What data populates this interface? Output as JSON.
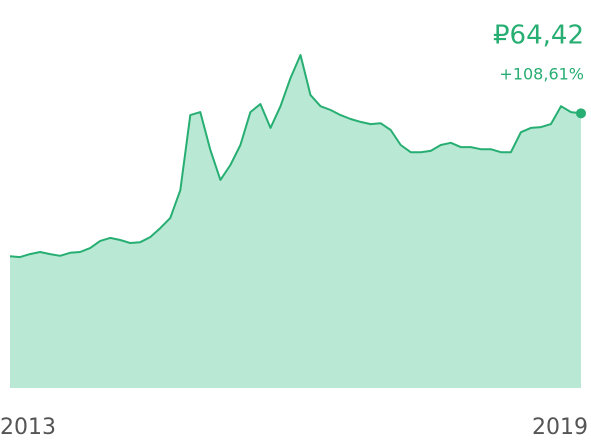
{
  "chart_data": {
    "type": "area",
    "price": "₽64,42",
    "change": "+108,61%",
    "categories": [
      "2013",
      null,
      null,
      null,
      null,
      null,
      null,
      null,
      null,
      null,
      null,
      null,
      null,
      null,
      null,
      null,
      null,
      null,
      null,
      null,
      null,
      null,
      null,
      null,
      null,
      null,
      null,
      null,
      null,
      null,
      null,
      null,
      null,
      null,
      null,
      null,
      null,
      null,
      null,
      null,
      null,
      null,
      null,
      null,
      null,
      null,
      null,
      null,
      null,
      null,
      null,
      null,
      null,
      null,
      null,
      null,
      null,
      "2019"
    ],
    "values": [
      30.88,
      30.7,
      31.4,
      31.9,
      31.4,
      31.0,
      31.7,
      31.9,
      32.8,
      34.5,
      35.2,
      34.7,
      34.0,
      34.2,
      35.4,
      37.5,
      39.9,
      46.4,
      64.0,
      64.7,
      55.8,
      48.8,
      52.3,
      57.0,
      64.7,
      66.6,
      61.0,
      66.1,
      72.7,
      78.1,
      68.7,
      66.1,
      65.2,
      64.0,
      63.1,
      62.4,
      61.9,
      62.1,
      60.5,
      57.0,
      55.3,
      55.3,
      55.6,
      57.0,
      57.5,
      56.5,
      56.5,
      56.0,
      56.0,
      55.3,
      55.3,
      60.0,
      61.0,
      61.2,
      61.9,
      66.1,
      64.7,
      64.42
    ],
    "ylim": [
      0,
      91
    ],
    "color": "#27ae72",
    "fill": "#b9e8d4"
  }
}
